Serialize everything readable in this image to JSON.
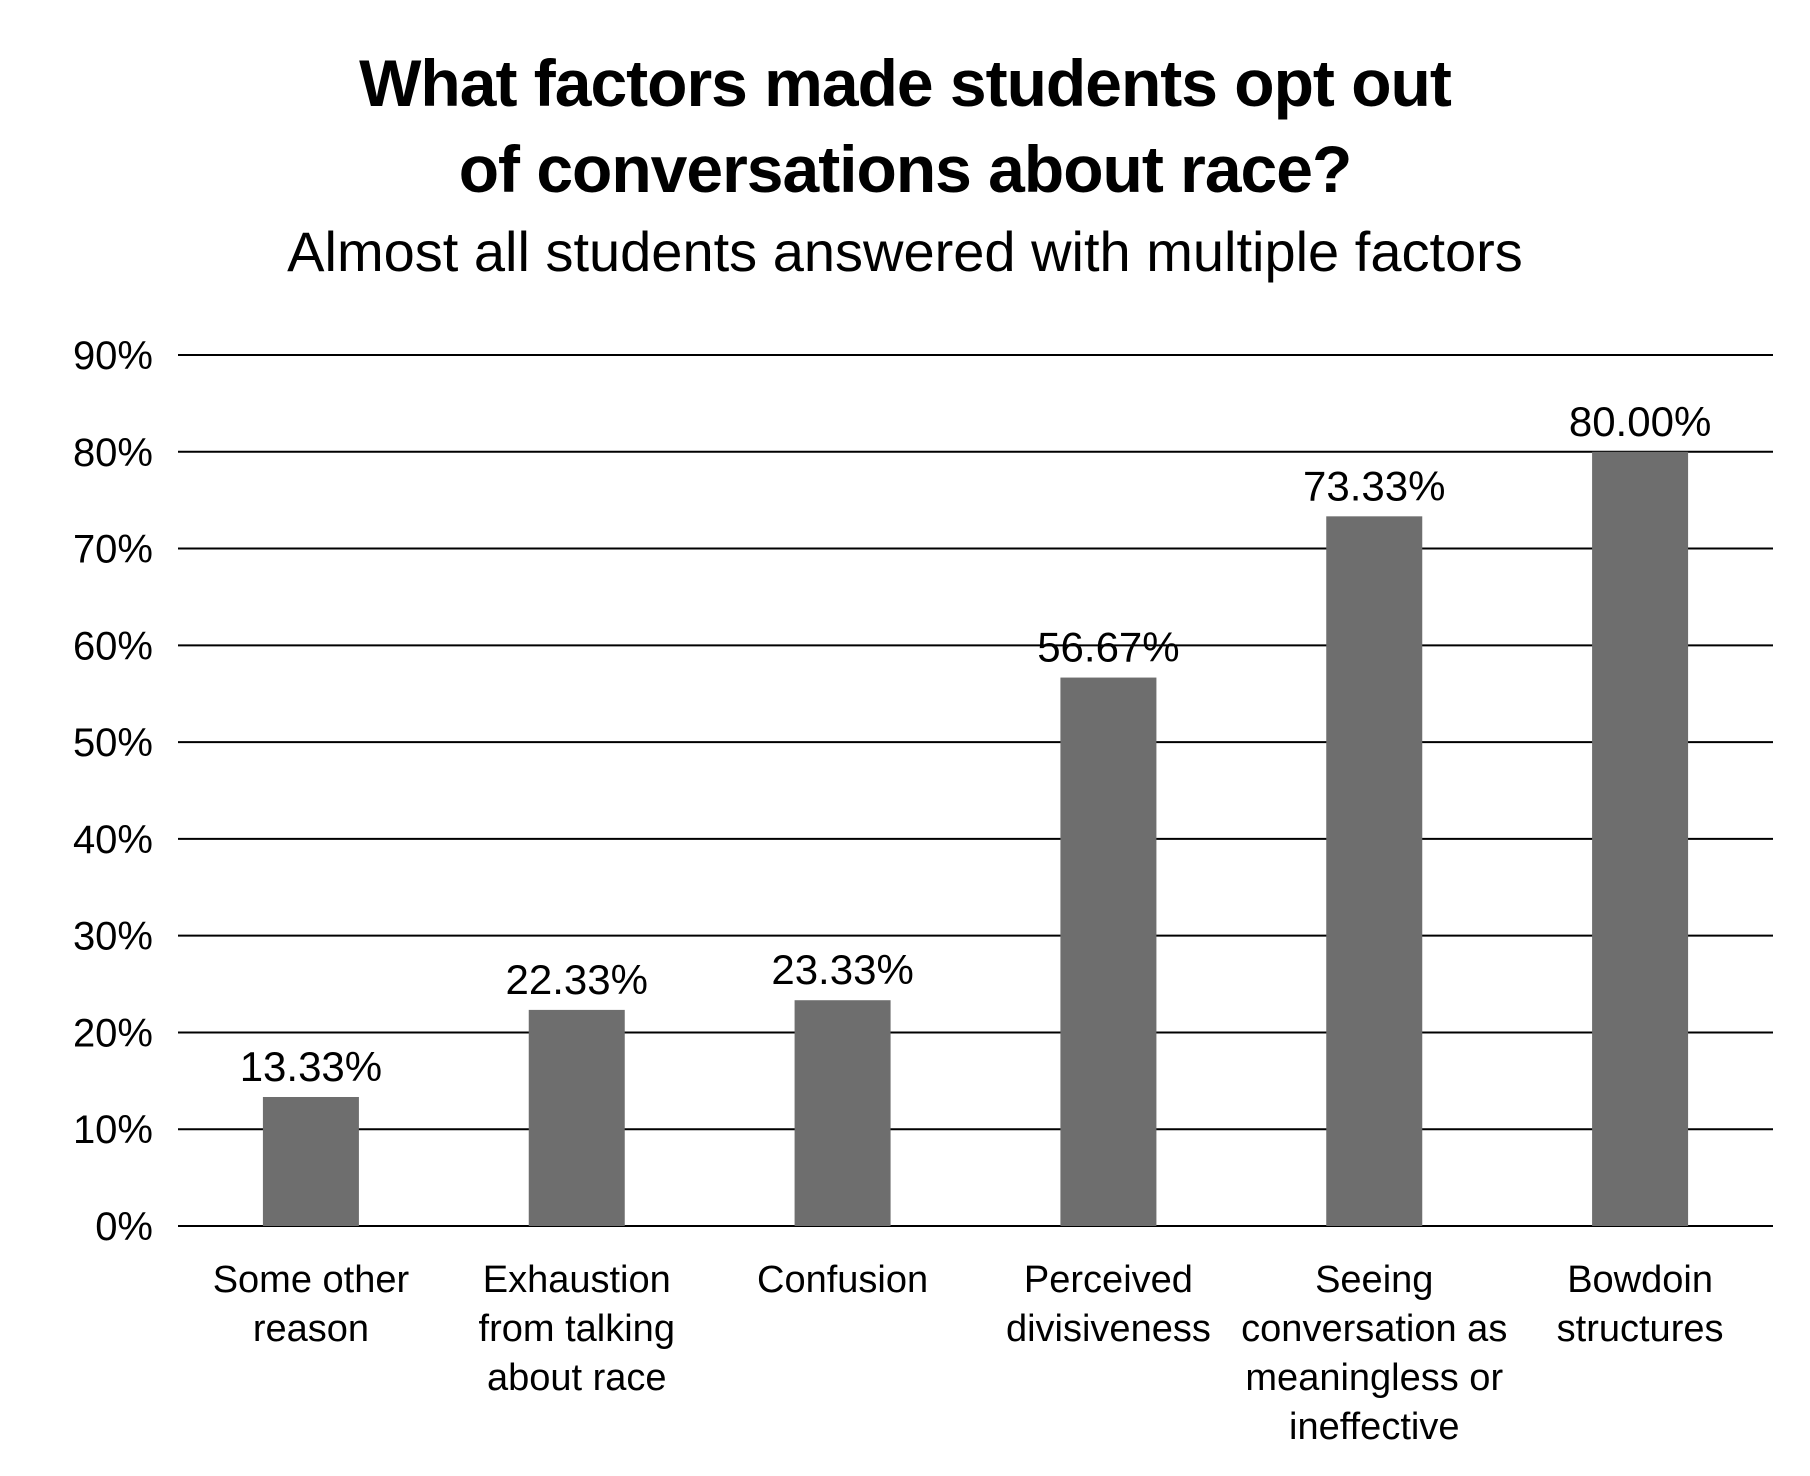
{
  "chart_data": {
    "type": "bar",
    "title_lines": [
      "What factors made students opt out",
      "of conversations about race?"
    ],
    "subtitle": "Almost all students answered with multiple factors",
    "categories": [
      "Some other reason",
      "Exhaustion from talking about race",
      "Confusion",
      "Perceived divisiveness",
      "Seeing conversation as meaningless or ineffective",
      "Bowdoin structures"
    ],
    "category_label_lines": [
      [
        "Some other",
        "reason"
      ],
      [
        "Exhaustion",
        "from talking",
        "about race"
      ],
      [
        "Confusion"
      ],
      [
        "Perceived",
        "divisiveness"
      ],
      [
        "Seeing",
        "conversation as",
        "meaningless or",
        "ineffective"
      ],
      [
        "Bowdoin",
        "structures"
      ]
    ],
    "values": [
      13.33,
      22.33,
      23.33,
      56.67,
      73.33,
      80.0
    ],
    "data_labels": [
      "13.33%",
      "22.33%",
      "23.33%",
      "56.67%",
      "73.33%",
      "80.00%"
    ],
    "ylim": [
      0,
      90
    ],
    "yticks": [
      0,
      10,
      20,
      30,
      40,
      50,
      60,
      70,
      80,
      90
    ],
    "ytick_labels": [
      "0%",
      "10%",
      "20%",
      "30%",
      "40%",
      "50%",
      "60%",
      "70%",
      "80%",
      "90%"
    ],
    "grid": true,
    "legend": "none",
    "bar_color": "#6e6e6e",
    "grid_color": "#000000"
  }
}
